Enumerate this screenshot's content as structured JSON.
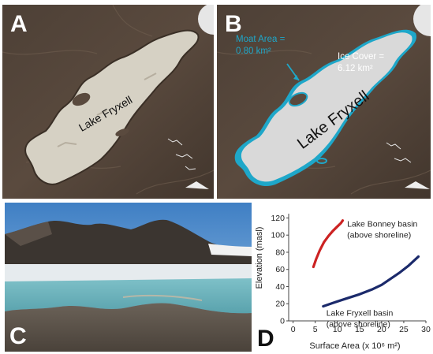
{
  "panels": {
    "a": {
      "letter": "A",
      "lake_label": "Lake Fryxell"
    },
    "b": {
      "letter": "B",
      "lake_label": "Lake Fryxell",
      "moat_line1": "Moat Area =",
      "moat_line2": "0.80 km²",
      "ice_line1": "Ice Cover =",
      "ice_line2": "6.12 km²"
    },
    "c": {
      "letter": "C"
    },
    "d": {
      "letter": "D"
    }
  },
  "colors": {
    "moat": "#1ea7c9",
    "bonney_series": "#cc2222",
    "fryxell_series": "#1b2a6b"
  },
  "chart_data": {
    "type": "line",
    "xlabel": "Surface Area (x 10⁶ m²)",
    "ylabel": "Elevation (masl)",
    "xlim": [
      -1,
      30
    ],
    "ylim": [
      0,
      125
    ],
    "xticks": [
      "0",
      "5",
      "10",
      "15",
      "20",
      "25",
      "30"
    ],
    "yticks": [
      "0",
      "20",
      "40",
      "60",
      "80",
      "100",
      "120"
    ],
    "series": [
      {
        "name": "Lake Bonney basin (above shoreline)",
        "label_line1": "Lake Bonney basin",
        "label_line2": "(above shoreline)",
        "x": [
          4.6,
          5.2,
          6.0,
          7.0,
          8.0,
          9.0,
          10.0,
          10.8,
          11.2
        ],
        "y": [
          63,
          72,
          82,
          92,
          99,
          105,
          110,
          114,
          117
        ]
      },
      {
        "name": "Lake Fryxell basin (above shoreline)",
        "label_line1": "Lake Fryxell basin",
        "label_line2": "(above shoreline)",
        "x": [
          6.8,
          9,
          12,
          15,
          18,
          20,
          22,
          24,
          26,
          28.3
        ],
        "y": [
          17,
          21,
          26,
          31,
          37,
          42,
          49,
          56,
          64,
          75
        ]
      }
    ]
  }
}
